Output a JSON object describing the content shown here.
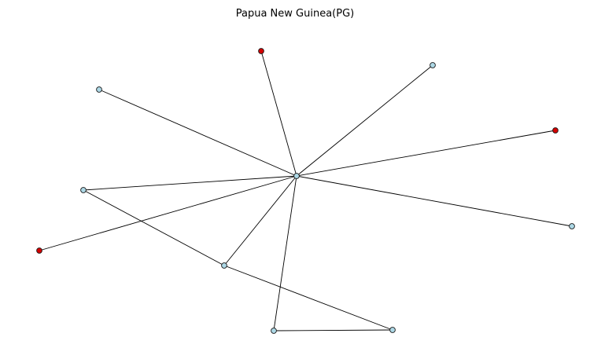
{
  "title": "Papua New Guinea(PG)",
  "colors": {
    "blue_node": "#add8e6",
    "red_node": "#d40000",
    "edge": "#000000",
    "node_stroke": "#1a1a1a"
  },
  "nodes": [
    {
      "id": "hub",
      "kind": "blue"
    },
    {
      "id": "n1",
      "kind": "red"
    },
    {
      "id": "n2",
      "kind": "blue"
    },
    {
      "id": "n3",
      "kind": "blue"
    },
    {
      "id": "n4",
      "kind": "red"
    },
    {
      "id": "n5",
      "kind": "blue"
    },
    {
      "id": "n6",
      "kind": "blue"
    },
    {
      "id": "n7",
      "kind": "red"
    },
    {
      "id": "n8",
      "kind": "blue"
    },
    {
      "id": "n9",
      "kind": "blue"
    },
    {
      "id": "n10",
      "kind": "blue"
    }
  ],
  "edges": [
    [
      "hub",
      "n1"
    ],
    [
      "hub",
      "n2"
    ],
    [
      "hub",
      "n3"
    ],
    [
      "hub",
      "n4"
    ],
    [
      "hub",
      "n5"
    ],
    [
      "hub",
      "n6"
    ],
    [
      "hub",
      "n7"
    ],
    [
      "hub",
      "n8"
    ],
    [
      "hub",
      "n9"
    ],
    [
      "n6",
      "n8"
    ],
    [
      "n8",
      "n10"
    ],
    [
      "n9",
      "n10"
    ]
  ]
}
